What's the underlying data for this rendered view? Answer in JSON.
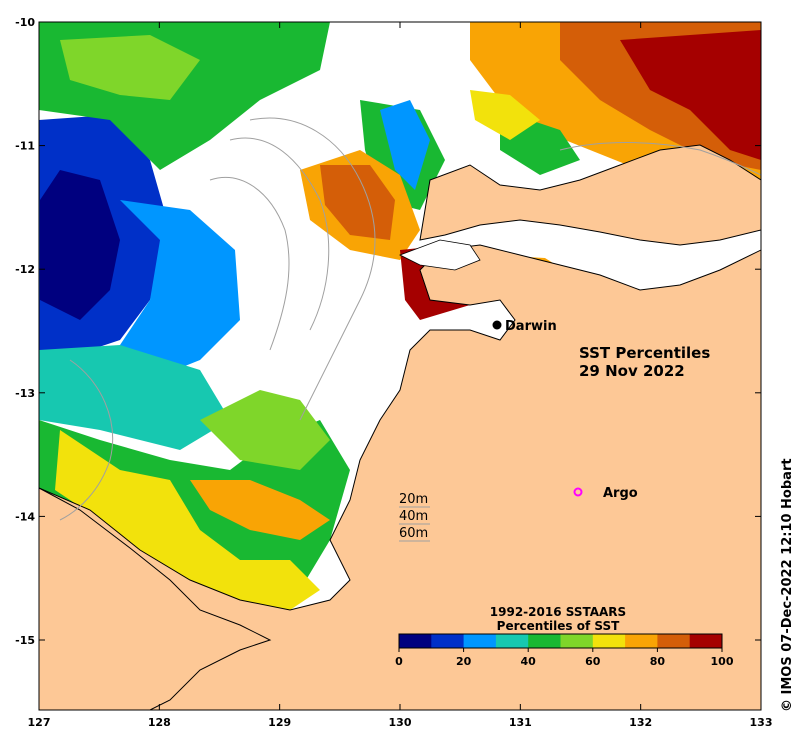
{
  "map": {
    "title_line1": "SST Percentiles",
    "title_line2": "29 Nov 2022",
    "credit": "© IMOS 07-Dec-2022 12:10 Hobart",
    "lon_ticks": [
      "127",
      "128",
      "129",
      "130",
      "131",
      "132",
      "133"
    ],
    "lat_ticks": [
      "-10",
      "-11",
      "-12",
      "-13",
      "-14",
      "-15"
    ],
    "places": {
      "darwin": "Darwin",
      "argo": "Argo"
    },
    "depth_legend": [
      "20m",
      "40m",
      "60m"
    ],
    "colorbar": {
      "title_line1": "1992-2016 SSTAARS",
      "title_line2": "Percentiles of SST",
      "ticks": [
        "0",
        "20",
        "40",
        "60",
        "80",
        "100"
      ],
      "colors": [
        "#00007f",
        "#0030c8",
        "#0096ff",
        "#17c8b0",
        "#19b832",
        "#7fd62a",
        "#f2e20c",
        "#f9a405",
        "#d45e08",
        "#a50000"
      ]
    },
    "land_color": "#fdc896",
    "argo_color": "#ff00ff"
  }
}
